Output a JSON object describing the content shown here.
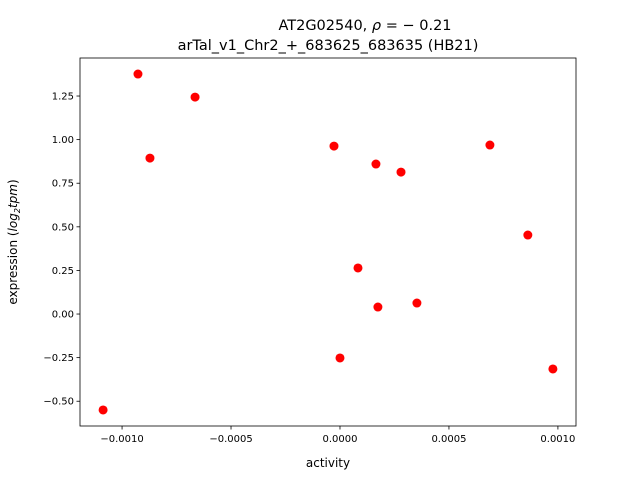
{
  "chart_data": {
    "type": "scatter",
    "title_line1": "AT2G02540, ρ = − 0.21",
    "title_line1_prefix": "AT2G02540, ",
    "title_line1_rho": "ρ",
    "title_line1_value": " = − 0.21",
    "title_line2": "arTal_v1_Chr2_+_683625_683635 (HB21)",
    "xlabel": "activity",
    "ylabel_prefix": "expression (",
    "ylabel_log": "log",
    "ylabel_sub": "2",
    "ylabel_tpm": "tpm",
    "ylabel_suffix": ")",
    "xlim": [
      -0.001193,
      0.001083
    ],
    "ylim": [
      -0.642,
      1.468
    ],
    "xticks": [
      -0.001,
      -0.0005,
      0.0,
      0.0005,
      0.001
    ],
    "xtick_labels": [
      "−0.0010",
      "−0.0005",
      "0.0000",
      "0.0005",
      "0.0010"
    ],
    "yticks": [
      -0.5,
      -0.25,
      0.0,
      0.25,
      0.5,
      0.75,
      1.0,
      1.25
    ],
    "ytick_labels": [
      "−0.50",
      "−0.25",
      "0.00",
      "0.25",
      "0.50",
      "0.75",
      "1.00",
      "1.25"
    ],
    "marker_color": "#ff0000",
    "grid": false,
    "points": [
      {
        "x": -0.000927,
        "y": 1.376
      },
      {
        "x": -0.000665,
        "y": 1.244
      },
      {
        "x": -0.000872,
        "y": 0.894
      },
      {
        "x": -2.75e-05,
        "y": 0.963
      },
      {
        "x": 0.000165,
        "y": 0.86
      },
      {
        "x": 0.00028,
        "y": 0.814
      },
      {
        "x": 0.000688,
        "y": 0.969
      },
      {
        "x": 0.000862,
        "y": 0.453
      },
      {
        "x": 8.26e-05,
        "y": 0.264
      },
      {
        "x": 0.000174,
        "y": 0.04
      },
      {
        "x": 0.000353,
        "y": 0.063
      },
      {
        "x": 0.0,
        "y": -0.252
      },
      {
        "x": 0.000977,
        "y": -0.315
      },
      {
        "x": -0.001087,
        "y": -0.55
      }
    ]
  }
}
